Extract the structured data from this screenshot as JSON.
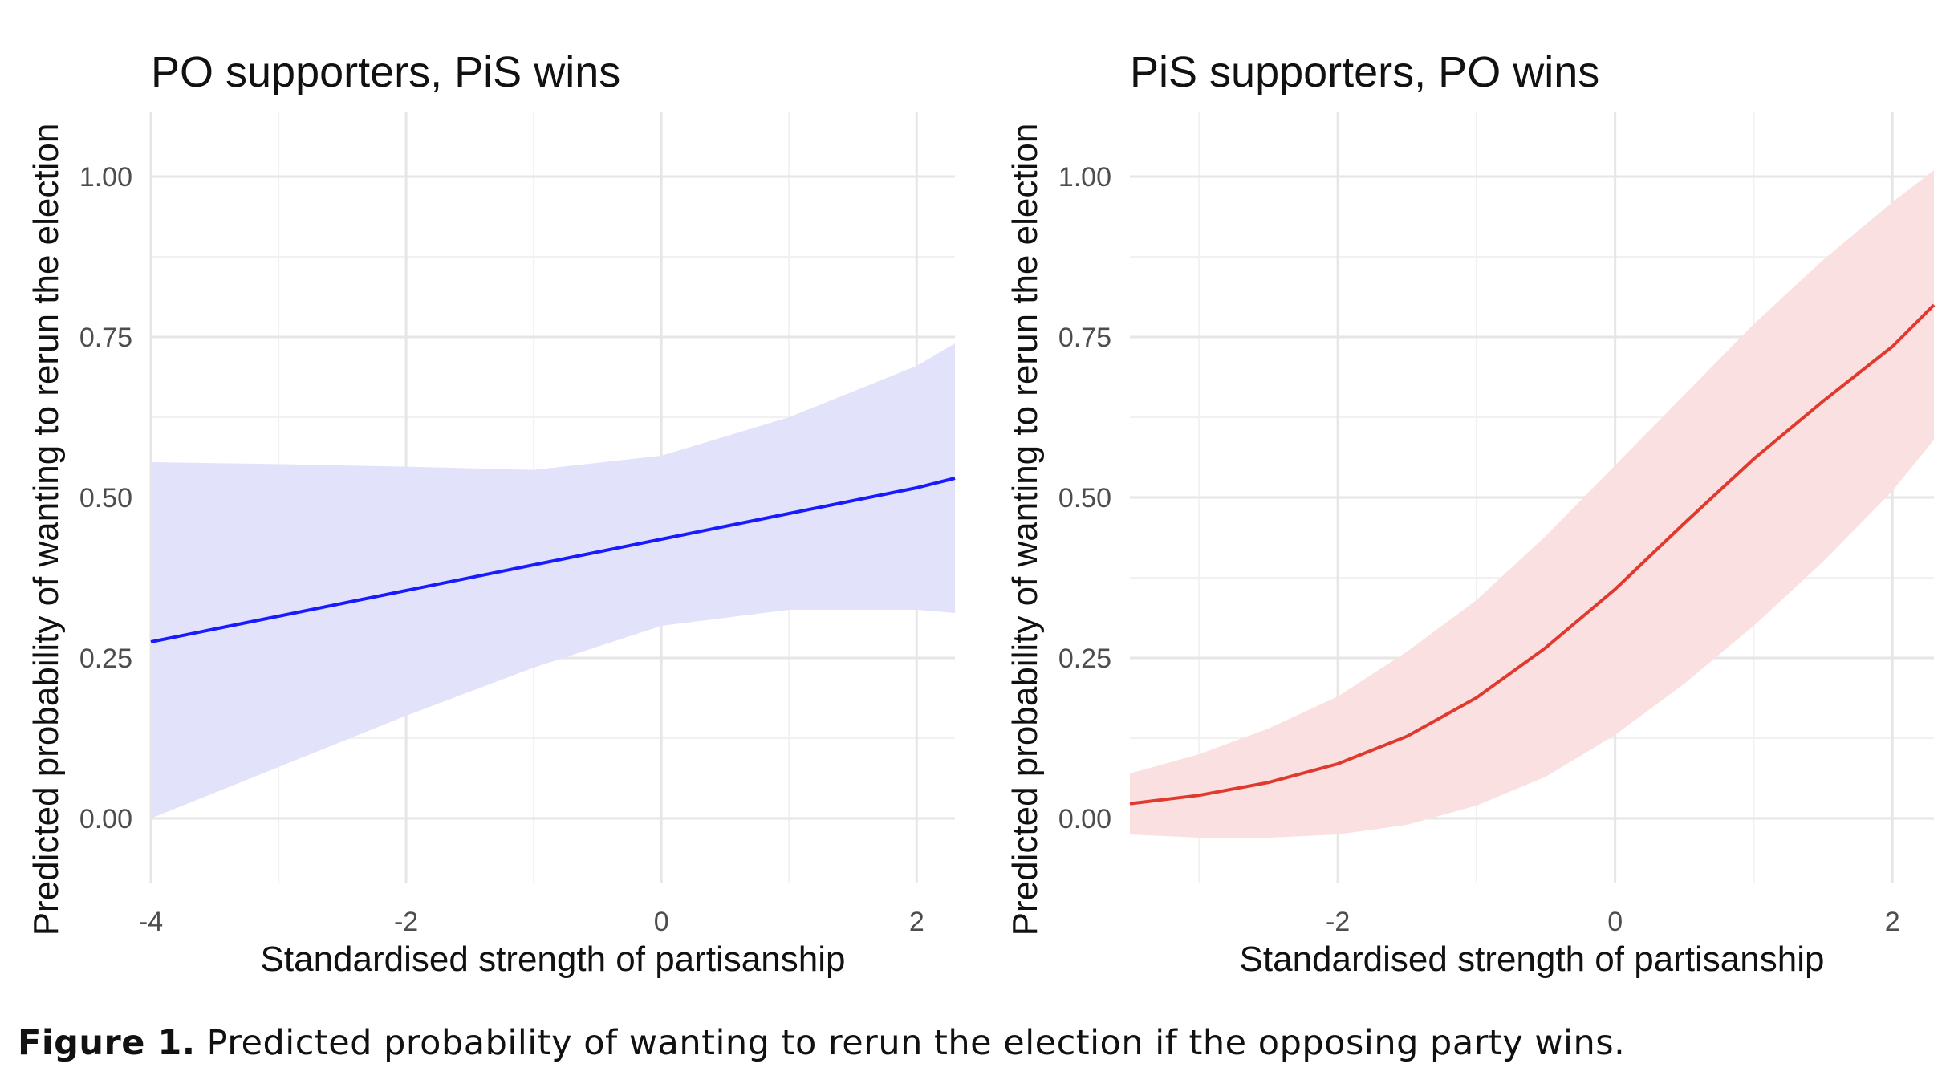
{
  "figure": {
    "caption_label": "Figure 1.",
    "caption_text": "Predicted probability of wanting to rerun the election if the opposing party wins."
  },
  "chart_data": [
    {
      "type": "line",
      "title": "PO supporters, PiS wins",
      "xlabel": "Standardised strength of partisanship",
      "ylabel": "Predicted probability of wanting to rerun the election",
      "xlim": [
        -4.0,
        2.3
      ],
      "ylim": [
        -0.1,
        1.1
      ],
      "x_ticks": [
        -4,
        -2,
        0,
        2
      ],
      "x_tick_labels": [
        "-4",
        "-2",
        "0",
        "2"
      ],
      "y_ticks": [
        0.0,
        0.25,
        0.5,
        0.75,
        1.0
      ],
      "y_tick_labels": [
        "0.00",
        "0.25",
        "0.50",
        "0.75",
        "1.00"
      ],
      "grid": true,
      "legend": "none",
      "line_color": "#1a1aff",
      "ribbon_color": "#e2e2fb",
      "series": [
        {
          "name": "predicted",
          "x": [
            -4.0,
            -3.0,
            -2.0,
            -1.0,
            0.0,
            1.0,
            2.0,
            2.3
          ],
          "y": [
            0.275,
            0.315,
            0.355,
            0.395,
            0.435,
            0.475,
            0.515,
            0.53
          ],
          "lower": [
            0.0,
            0.08,
            0.16,
            0.235,
            0.3,
            0.325,
            0.325,
            0.32
          ],
          "upper": [
            0.555,
            0.552,
            0.548,
            0.543,
            0.565,
            0.625,
            0.705,
            0.74
          ]
        }
      ]
    },
    {
      "type": "line",
      "title": "PiS supporters, PO wins",
      "xlabel": "Standardised strength of partisanship",
      "ylabel": "Predicted probability of wanting to rerun the election",
      "xlim": [
        -3.5,
        2.3
      ],
      "ylim": [
        -0.1,
        1.1
      ],
      "x_ticks": [
        -2,
        0,
        2
      ],
      "x_tick_labels": [
        "-2",
        "0",
        "2"
      ],
      "y_ticks": [
        0.0,
        0.25,
        0.5,
        0.75,
        1.0
      ],
      "y_tick_labels": [
        "0.00",
        "0.25",
        "0.50",
        "0.75",
        "1.00"
      ],
      "grid": true,
      "legend": "none",
      "line_color": "#e03a2f",
      "ribbon_color": "#fae0e0",
      "series": [
        {
          "name": "predicted",
          "x": [
            -3.5,
            -3.0,
            -2.5,
            -2.0,
            -1.5,
            -1.0,
            -0.5,
            0.0,
            0.5,
            1.0,
            1.5,
            2.0,
            2.3
          ],
          "y": [
            0.023,
            0.036,
            0.056,
            0.085,
            0.128,
            0.188,
            0.266,
            0.357,
            0.46,
            0.56,
            0.65,
            0.735,
            0.8
          ],
          "lower": [
            -0.025,
            -0.03,
            -0.03,
            -0.025,
            -0.01,
            0.02,
            0.065,
            0.13,
            0.21,
            0.3,
            0.4,
            0.51,
            0.59
          ],
          "upper": [
            0.07,
            0.1,
            0.14,
            0.19,
            0.26,
            0.34,
            0.44,
            0.55,
            0.66,
            0.77,
            0.87,
            0.96,
            1.01
          ]
        }
      ]
    }
  ]
}
